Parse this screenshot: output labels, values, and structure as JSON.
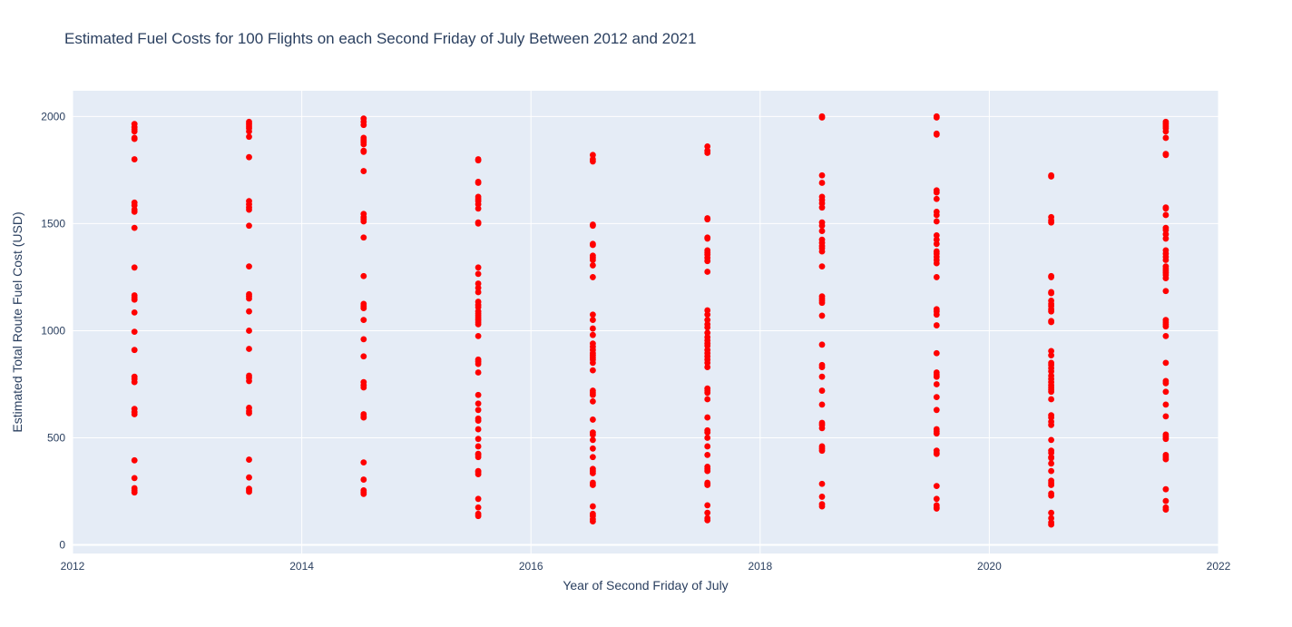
{
  "chart_data": {
    "type": "scatter",
    "title": "Estimated Fuel Costs for 100 Flights on each Second Friday of July Between 2012 and 2021",
    "xlabel": "Year of Second Friday of July",
    "ylabel": "Estimated Total Route Fuel Cost (USD)",
    "xlim": [
      2012,
      2022
    ],
    "ylim": [
      -40,
      2120
    ],
    "x_ticks": [
      "2012",
      "2014",
      "2016",
      "2018",
      "2020",
      "2022"
    ],
    "x_tick_values": [
      2012,
      2014,
      2016,
      2018,
      2020,
      2022
    ],
    "y_ticks": [
      "0",
      "500",
      "1000",
      "1500",
      "2000"
    ],
    "y_tick_values": [
      0,
      500,
      1000,
      1500,
      2000
    ],
    "grid": true,
    "legend": "none",
    "marker_color": "#ff0000",
    "series": [
      {
        "x": 2012.54,
        "values": [
          1965,
          1950,
          1940,
          1930,
          1900,
          1895,
          1800,
          1598,
          1585,
          1565,
          1555,
          1480,
          1295,
          1165,
          1155,
          1145,
          1085,
          995,
          910,
          785,
          775,
          760,
          635,
          620,
          610,
          395,
          312,
          265,
          255,
          245
        ]
      },
      {
        "x": 2013.54,
        "values": [
          1975,
          1965,
          1955,
          1945,
          1930,
          1905,
          1810,
          1605,
          1590,
          1575,
          1565,
          1490,
          1300,
          1170,
          1160,
          1150,
          1090,
          1000,
          915,
          790,
          780,
          765,
          640,
          625,
          615,
          398,
          315,
          262,
          255,
          248
        ]
      },
      {
        "x": 2014.54,
        "values": [
          1990,
          1975,
          1960,
          1900,
          1890,
          1880,
          1870,
          1840,
          1835,
          1745,
          1545,
          1530,
          1520,
          1510,
          1435,
          1255,
          1125,
          1115,
          1105,
          1050,
          960,
          880,
          760,
          745,
          735,
          610,
          600,
          595,
          385,
          305,
          255,
          245,
          238
        ]
      },
      {
        "x": 2015.54,
        "values": [
          1800,
          1795,
          1695,
          1690,
          1625,
          1615,
          1605,
          1590,
          1570,
          1505,
          1500,
          1295,
          1265,
          1220,
          1200,
          1180,
          1135,
          1120,
          1110,
          1090,
          1080,
          1070,
          1060,
          1050,
          1040,
          1030,
          975,
          865,
          855,
          845,
          805,
          700,
          660,
          630,
          590,
          580,
          540,
          495,
          460,
          425,
          420,
          410,
          345,
          340,
          330,
          215,
          175,
          145,
          135
        ]
      },
      {
        "x": 2016.54,
        "values": [
          1820,
          1800,
          1790,
          1495,
          1490,
          1405,
          1400,
          1350,
          1340,
          1330,
          1305,
          1250,
          1075,
          1050,
          1010,
          980,
          940,
          925,
          910,
          895,
          885,
          875,
          865,
          850,
          815,
          720,
          710,
          700,
          670,
          585,
          525,
          515,
          490,
          450,
          410,
          355,
          345,
          335,
          290,
          280,
          180,
          145,
          135,
          120,
          110
        ]
      },
      {
        "x": 2017.54,
        "values": [
          1860,
          1840,
          1830,
          1525,
          1520,
          1435,
          1430,
          1375,
          1365,
          1355,
          1340,
          1325,
          1275,
          1095,
          1075,
          1050,
          1030,
          1015,
          990,
          970,
          955,
          940,
          930,
          910,
          895,
          880,
          865,
          850,
          830,
          730,
          720,
          710,
          680,
          595,
          535,
          525,
          500,
          460,
          420,
          365,
          355,
          345,
          290,
          285,
          280,
          185,
          150,
          125,
          115
        ]
      },
      {
        "x": 2018.54,
        "values": [
          2000,
          1995,
          1725,
          1690,
          1625,
          1610,
          1595,
          1575,
          1505,
          1490,
          1465,
          1425,
          1410,
          1395,
          1385,
          1370,
          1300,
          1160,
          1150,
          1140,
          1130,
          1070,
          935,
          840,
          830,
          785,
          720,
          655,
          570,
          560,
          545,
          460,
          450,
          440,
          285,
          225,
          190,
          180
        ]
      },
      {
        "x": 2019.54,
        "values": [
          2000,
          1995,
          1920,
          1915,
          1655,
          1645,
          1615,
          1555,
          1540,
          1510,
          1445,
          1425,
          1405,
          1370,
          1360,
          1345,
          1330,
          1315,
          1250,
          1100,
          1090,
          1075,
          1025,
          895,
          805,
          795,
          785,
          750,
          690,
          630,
          540,
          530,
          520,
          440,
          430,
          425,
          275,
          215,
          185,
          175,
          170
        ]
      },
      {
        "x": 2020.54,
        "values": [
          1725,
          1720,
          1530,
          1515,
          1505,
          1255,
          1250,
          1180,
          1175,
          1140,
          1125,
          1115,
          1100,
          1090,
          1045,
          1040,
          905,
          885,
          850,
          840,
          825,
          810,
          790,
          775,
          760,
          745,
          735,
          725,
          715,
          680,
          605,
          595,
          575,
          560,
          490,
          440,
          430,
          410,
          405,
          380,
          345,
          300,
          290,
          280,
          240,
          230,
          150,
          125,
          105,
          95
        ]
      },
      {
        "x": 2021.54,
        "values": [
          1975,
          1965,
          1955,
          1945,
          1930,
          1900,
          1825,
          1820,
          1575,
          1570,
          1540,
          1480,
          1470,
          1450,
          1430,
          1375,
          1360,
          1345,
          1330,
          1300,
          1290,
          1280,
          1270,
          1260,
          1245,
          1185,
          1050,
          1040,
          1030,
          1020,
          975,
          850,
          765,
          755,
          715,
          655,
          600,
          515,
          505,
          495,
          420,
          410,
          400,
          260,
          205,
          175,
          165
        ]
      }
    ]
  }
}
